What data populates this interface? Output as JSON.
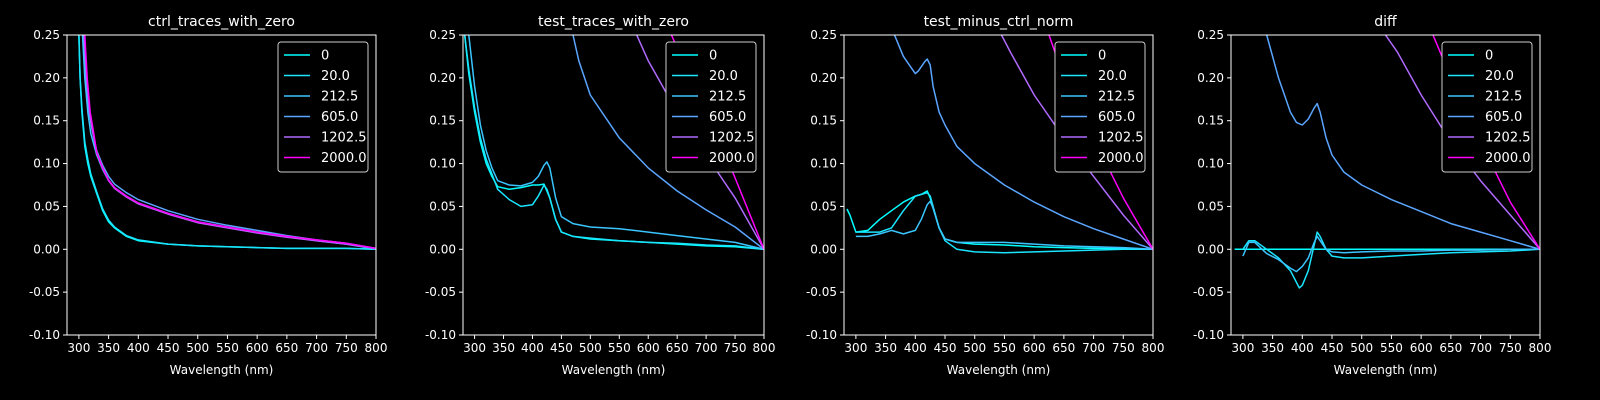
{
  "figure": {
    "background": "#000000",
    "foreground": "#ffffff"
  },
  "chart_data": [
    {
      "type": "line",
      "title": "ctrl_traces_with_zero",
      "xlabel": "Wavelength (nm)",
      "ylabel": "",
      "xlim": [
        280,
        800
      ],
      "ylim": [
        -0.1,
        0.25
      ],
      "xticks": [
        300,
        350,
        400,
        450,
        500,
        550,
        600,
        650,
        700,
        750,
        800
      ],
      "yticks": [
        -0.1,
        -0.05,
        0.0,
        0.05,
        0.1,
        0.15,
        0.2,
        0.25
      ],
      "legend": "top-right",
      "series": [
        {
          "name": "0",
          "color": "#00ffff",
          "x": [
            300,
            302,
            305,
            310,
            315,
            320,
            330,
            340,
            350,
            360,
            380,
            400,
            450,
            500,
            550,
            600,
            650,
            700,
            750,
            800
          ],
          "y": [
            0.25,
            0.2,
            0.16,
            0.12,
            0.1,
            0.085,
            0.065,
            0.045,
            0.032,
            0.025,
            0.015,
            0.01,
            0.006,
            0.004,
            0.003,
            0.002,
            0.001,
            0.001,
            0.001,
            0.0
          ]
        },
        {
          "name": "20.0",
          "color": "#1ae5ff",
          "x": [
            300,
            302,
            305,
            310,
            315,
            320,
            330,
            340,
            350,
            360,
            380,
            400,
            450,
            500,
            550,
            600,
            650,
            700,
            750,
            800
          ],
          "y": [
            0.25,
            0.2,
            0.165,
            0.125,
            0.105,
            0.088,
            0.067,
            0.047,
            0.034,
            0.026,
            0.016,
            0.011,
            0.006,
            0.004,
            0.003,
            0.002,
            0.001,
            0.001,
            0.001,
            0.0
          ]
        },
        {
          "name": "212.5",
          "color": "#3ac5ff",
          "x": [
            306,
            310,
            315,
            320,
            330,
            340,
            350,
            360,
            380,
            400,
            450,
            500,
            550,
            600,
            650,
            700,
            750,
            800
          ],
          "y": [
            0.25,
            0.2,
            0.16,
            0.135,
            0.11,
            0.093,
            0.08,
            0.072,
            0.062,
            0.054,
            0.042,
            0.032,
            0.026,
            0.02,
            0.015,
            0.01,
            0.006,
            0.0
          ]
        },
        {
          "name": "605.0",
          "color": "#5aa5ff",
          "x": [
            308,
            312,
            317,
            322,
            330,
            340,
            350,
            360,
            380,
            400,
            450,
            500,
            550,
            600,
            650,
            700,
            750,
            800
          ],
          "y": [
            0.25,
            0.2,
            0.16,
            0.14,
            0.115,
            0.098,
            0.085,
            0.076,
            0.066,
            0.058,
            0.045,
            0.035,
            0.028,
            0.022,
            0.016,
            0.011,
            0.007,
            0.001
          ]
        },
        {
          "name": "1202.5",
          "color": "#b06aff",
          "x": [
            309,
            313,
            318,
            323,
            330,
            340,
            350,
            360,
            380,
            400,
            450,
            500,
            550,
            600,
            650,
            700,
            750,
            800
          ],
          "y": [
            0.25,
            0.2,
            0.16,
            0.138,
            0.112,
            0.094,
            0.08,
            0.071,
            0.061,
            0.053,
            0.041,
            0.031,
            0.025,
            0.019,
            0.014,
            0.01,
            0.006,
            0.001
          ]
        },
        {
          "name": "2000.0",
          "color": "#ff00ff",
          "x": [
            310,
            314,
            319,
            324,
            330,
            340,
            350,
            360,
            380,
            400,
            450,
            500,
            550,
            600,
            650,
            700,
            750,
            800
          ],
          "y": [
            0.25,
            0.2,
            0.16,
            0.14,
            0.113,
            0.095,
            0.081,
            0.072,
            0.062,
            0.054,
            0.042,
            0.032,
            0.026,
            0.02,
            0.015,
            0.011,
            0.007,
            0.001
          ]
        }
      ]
    },
    {
      "type": "line",
      "title": "test_traces_with_zero",
      "xlabel": "Wavelength (nm)",
      "ylabel": "",
      "xlim": [
        280,
        800
      ],
      "ylim": [
        -0.1,
        0.25
      ],
      "xticks": [
        300,
        350,
        400,
        450,
        500,
        550,
        600,
        650,
        700,
        750,
        800
      ],
      "yticks": [
        -0.1,
        -0.05,
        0.0,
        0.05,
        0.1,
        0.15,
        0.2,
        0.25
      ],
      "legend": "top-right",
      "series": [
        {
          "name": "0",
          "color": "#00ffff",
          "x": [
            283,
            290,
            300,
            310,
            320,
            330,
            340,
            360,
            380,
            400,
            410,
            420,
            430,
            440,
            450,
            470,
            500,
            550,
            600,
            650,
            700,
            750,
            800
          ],
          "y": [
            0.25,
            0.205,
            0.16,
            0.125,
            0.1,
            0.085,
            0.073,
            0.07,
            0.072,
            0.075,
            0.075,
            0.076,
            0.06,
            0.035,
            0.02,
            0.015,
            0.012,
            0.01,
            0.008,
            0.006,
            0.004,
            0.003,
            0.0
          ]
        },
        {
          "name": "20.0",
          "color": "#1ae5ff",
          "x": [
            283,
            290,
            300,
            310,
            320,
            330,
            340,
            360,
            380,
            400,
            410,
            420,
            425,
            430,
            440,
            450,
            470,
            500,
            550,
            600,
            650,
            700,
            750,
            800
          ],
          "y": [
            0.25,
            0.21,
            0.165,
            0.13,
            0.105,
            0.088,
            0.07,
            0.058,
            0.05,
            0.052,
            0.062,
            0.075,
            0.07,
            0.06,
            0.035,
            0.02,
            0.015,
            0.013,
            0.01,
            0.008,
            0.007,
            0.005,
            0.004,
            0.0
          ]
        },
        {
          "name": "212.5",
          "color": "#3ac5ff",
          "x": [
            290,
            300,
            310,
            320,
            330,
            340,
            360,
            380,
            400,
            410,
            420,
            425,
            430,
            440,
            450,
            470,
            500,
            550,
            600,
            650,
            700,
            750,
            800
          ],
          "y": [
            0.25,
            0.19,
            0.145,
            0.115,
            0.095,
            0.08,
            0.075,
            0.074,
            0.078,
            0.085,
            0.098,
            0.102,
            0.095,
            0.06,
            0.038,
            0.03,
            0.026,
            0.024,
            0.02,
            0.016,
            0.012,
            0.008,
            0.0
          ]
        },
        {
          "name": "605.0",
          "color": "#5aa5ff",
          "x": [
            470,
            480,
            500,
            550,
            600,
            650,
            700,
            750,
            800
          ],
          "y": [
            0.25,
            0.22,
            0.18,
            0.13,
            0.095,
            0.068,
            0.046,
            0.026,
            0.0
          ]
        },
        {
          "name": "1202.5",
          "color": "#b06aff",
          "x": [
            580,
            600,
            650,
            700,
            750,
            800
          ],
          "y": [
            0.25,
            0.22,
            0.16,
            0.11,
            0.06,
            0.0
          ]
        },
        {
          "name": "2000.0",
          "color": "#ff00ff",
          "x": [
            640,
            660,
            700,
            740,
            770,
            800
          ],
          "y": [
            0.25,
            0.22,
            0.16,
            0.1,
            0.05,
            0.0
          ]
        }
      ]
    },
    {
      "type": "line",
      "title": "test_minus_ctrl_norm",
      "xlabel": "Wavelength (nm)",
      "ylabel": "",
      "xlim": [
        280,
        800
      ],
      "ylim": [
        -0.1,
        0.25
      ],
      "xticks": [
        300,
        350,
        400,
        450,
        500,
        550,
        600,
        650,
        700,
        750,
        800
      ],
      "yticks": [
        -0.1,
        -0.05,
        0.0,
        0.05,
        0.1,
        0.15,
        0.2,
        0.25
      ],
      "legend": "top-right",
      "series": [
        {
          "name": "0",
          "color": "#00ffff",
          "x": [
            285,
            290,
            300,
            320,
            340,
            360,
            380,
            400,
            410,
            420,
            425,
            430,
            440,
            450,
            470,
            500,
            550,
            600,
            650,
            700,
            750,
            800
          ],
          "y": [
            0.047,
            0.04,
            0.02,
            0.022,
            0.035,
            0.045,
            0.055,
            0.062,
            0.064,
            0.068,
            0.06,
            0.048,
            0.025,
            0.012,
            0.008,
            0.006,
            0.005,
            0.003,
            0.002,
            0.001,
            0.001,
            0.0
          ]
        },
        {
          "name": "20.0",
          "color": "#1ae5ff",
          "x": [
            300,
            320,
            340,
            360,
            380,
            400,
            410,
            420,
            425,
            430,
            440,
            450,
            470,
            500,
            550,
            600,
            650,
            700,
            750,
            800
          ],
          "y": [
            0.02,
            0.02,
            0.02,
            0.025,
            0.045,
            0.062,
            0.064,
            0.066,
            0.062,
            0.05,
            0.025,
            0.01,
            0.0,
            -0.003,
            -0.004,
            -0.003,
            -0.002,
            -0.001,
            0.0,
            0.0
          ]
        },
        {
          "name": "212.5",
          "color": "#3ac5ff",
          "x": [
            300,
            320,
            340,
            360,
            380,
            400,
            410,
            420,
            425,
            430,
            440,
            450,
            470,
            500,
            550,
            600,
            650,
            700,
            750,
            800
          ],
          "y": [
            0.015,
            0.015,
            0.018,
            0.022,
            0.018,
            0.022,
            0.035,
            0.052,
            0.056,
            0.048,
            0.025,
            0.012,
            0.008,
            0.008,
            0.008,
            0.006,
            0.004,
            0.003,
            0.002,
            0.0
          ]
        },
        {
          "name": "605.0",
          "color": "#5aa5ff",
          "x": [
            365,
            380,
            395,
            400,
            405,
            410,
            415,
            420,
            425,
            430,
            440,
            450,
            470,
            500,
            550,
            600,
            650,
            700,
            750,
            800
          ],
          "y": [
            0.25,
            0.225,
            0.21,
            0.205,
            0.208,
            0.213,
            0.218,
            0.222,
            0.215,
            0.19,
            0.16,
            0.145,
            0.12,
            0.1,
            0.075,
            0.055,
            0.038,
            0.024,
            0.012,
            0.0
          ]
        },
        {
          "name": "1202.5",
          "color": "#b06aff",
          "x": [
            545,
            560,
            600,
            650,
            700,
            750,
            800
          ],
          "y": [
            0.25,
            0.23,
            0.18,
            0.13,
            0.085,
            0.04,
            0.0
          ]
        },
        {
          "name": "2000.0",
          "color": "#ff00ff",
          "x": [
            625,
            650,
            700,
            750,
            800
          ],
          "y": [
            0.25,
            0.2,
            0.13,
            0.06,
            0.0
          ]
        }
      ]
    },
    {
      "type": "line",
      "title": "diff",
      "xlabel": "Wavelength (nm)",
      "ylabel": "",
      "xlim": [
        280,
        800
      ],
      "ylim": [
        -0.1,
        0.25
      ],
      "xticks": [
        300,
        350,
        400,
        450,
        500,
        550,
        600,
        650,
        700,
        750,
        800
      ],
      "yticks": [
        -0.1,
        -0.05,
        0.0,
        0.05,
        0.1,
        0.15,
        0.2,
        0.25
      ],
      "legend": "top-right",
      "series": [
        {
          "name": "0",
          "color": "#00ffff",
          "x": [
            286,
            800
          ],
          "y": [
            0.0,
            0.0
          ]
        },
        {
          "name": "20.0",
          "color": "#1ae5ff",
          "x": [
            300,
            310,
            320,
            340,
            360,
            380,
            395,
            400,
            410,
            420,
            425,
            430,
            440,
            450,
            470,
            500,
            550,
            600,
            650,
            700,
            750,
            800
          ],
          "y": [
            0.0,
            0.01,
            0.01,
            0.0,
            -0.01,
            -0.025,
            -0.045,
            -0.042,
            -0.025,
            0.005,
            0.02,
            0.015,
            0.0,
            -0.008,
            -0.01,
            -0.01,
            -0.008,
            -0.006,
            -0.004,
            -0.003,
            -0.002,
            0.0
          ]
        },
        {
          "name": "212.5",
          "color": "#3ac5ff",
          "x": [
            300,
            310,
            320,
            340,
            360,
            380,
            390,
            400,
            410,
            420,
            425,
            430,
            440,
            450,
            470,
            500,
            550,
            600,
            650,
            700,
            750,
            800
          ],
          "y": [
            -0.008,
            0.008,
            0.008,
            -0.005,
            -0.012,
            -0.022,
            -0.026,
            -0.02,
            -0.01,
            0.008,
            0.015,
            0.01,
            0.0,
            -0.003,
            -0.004,
            -0.003,
            -0.002,
            -0.002,
            -0.001,
            -0.001,
            0.0,
            0.0
          ]
        },
        {
          "name": "605.0",
          "color": "#5aa5ff",
          "x": [
            340,
            360,
            380,
            390,
            400,
            410,
            420,
            425,
            430,
            440,
            450,
            470,
            500,
            550,
            600,
            650,
            700,
            750,
            800
          ],
          "y": [
            0.25,
            0.2,
            0.16,
            0.148,
            0.145,
            0.152,
            0.165,
            0.17,
            0.16,
            0.13,
            0.11,
            0.09,
            0.075,
            0.058,
            0.044,
            0.03,
            0.02,
            0.01,
            0.0
          ]
        },
        {
          "name": "1202.5",
          "color": "#b06aff",
          "x": [
            540,
            560,
            600,
            650,
            700,
            750,
            800
          ],
          "y": [
            0.25,
            0.23,
            0.18,
            0.125,
            0.08,
            0.04,
            0.0
          ]
        },
        {
          "name": "2000.0",
          "color": "#ff00ff",
          "x": [
            620,
            650,
            700,
            750,
            800
          ],
          "y": [
            0.25,
            0.2,
            0.125,
            0.055,
            0.0
          ]
        }
      ]
    }
  ]
}
